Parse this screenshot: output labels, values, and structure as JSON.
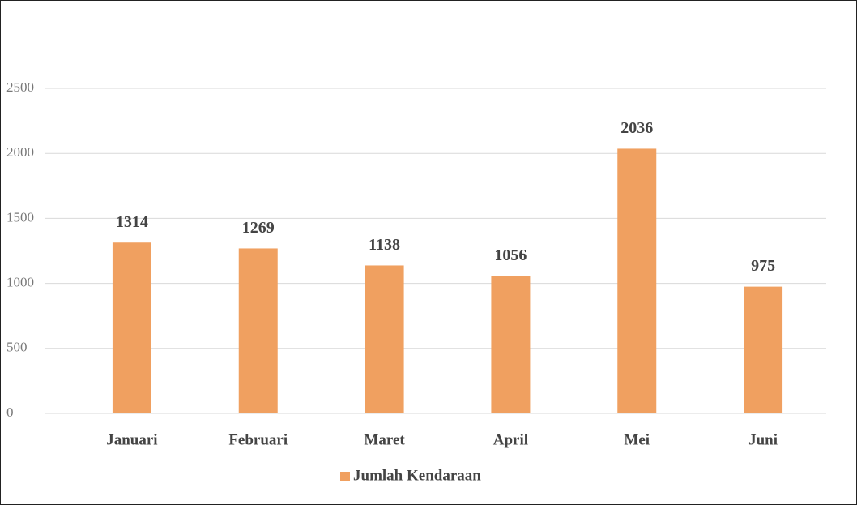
{
  "chart_data": {
    "type": "bar",
    "categories": [
      "Januari",
      "Februari",
      "Maret",
      "April",
      "Mei",
      "Juni"
    ],
    "series": [
      {
        "name": "Jumlah Kendaraan",
        "color": "#f0a060",
        "values": [
          1314,
          1269,
          1138,
          1056,
          2036,
          975
        ]
      }
    ],
    "ylim": [
      0,
      2500
    ],
    "yticks": [
      0,
      500,
      1000,
      1500,
      2000,
      2500
    ],
    "grid": true,
    "legend": "bottom"
  }
}
